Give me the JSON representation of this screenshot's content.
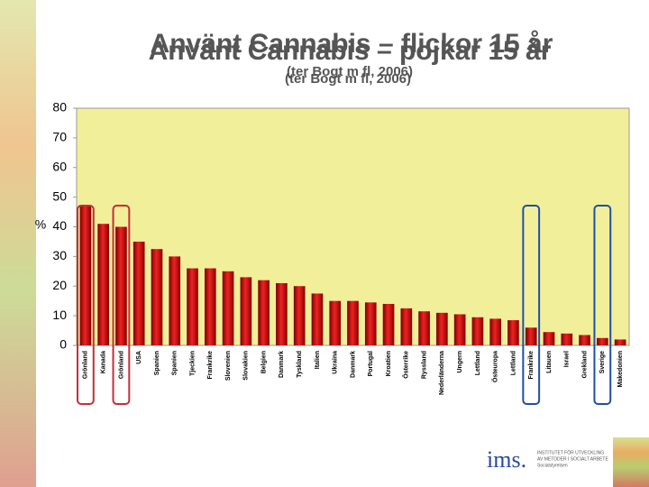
{
  "chart_data": {
    "type": "bar",
    "titles": [
      "Använt Cannabis – flickor 15 år",
      "Använt Cannabis – pojkar 15 år"
    ],
    "subtitles": [
      "(ter Bogt m fl, 2006)",
      "(ter Bogt m fl, 2006)"
    ],
    "y_label": "%",
    "categories": [
      "Grönland",
      "Kanada",
      "Grönland",
      "USA",
      "Spanien",
      "Spanien",
      "Tjeckien",
      "Frankrike",
      "Slovenien",
      "Slovakien",
      "Belgien",
      "Danmark",
      "Tyskland",
      "Italien",
      "Ukraina",
      "Danmark",
      "Portugal",
      "Kroatien",
      "Österrike",
      "Ryssland",
      "Nederländerna",
      "Ungern",
      "Lettland",
      "Östeuropa",
      "Lettland",
      "Frankrike",
      "Litauen",
      "Israel",
      "Grekland",
      "Sverige",
      "Makedonien"
    ],
    "values": [
      47,
      41,
      40,
      35,
      32.5,
      30,
      26,
      26,
      25,
      23,
      22,
      21,
      20,
      17.5,
      15,
      15,
      14.5,
      14,
      12.5,
      11.5,
      11,
      10.5,
      9.5,
      9,
      8.5,
      6,
      4.5,
      4,
      3.5,
      2.5,
      2
    ],
    "color": "#cc1111",
    "ylim": [
      0,
      80
    ],
    "yticks": [
      0,
      10,
      20,
      30,
      40,
      50,
      60,
      70,
      80
    ],
    "grid": false
  },
  "logo": {
    "name": "ims.",
    "text": [
      "INSTITUTET FÖR UTVECKLING",
      "AV METODER I SOCIALT ARBETE",
      "Socialstyrelsen"
    ]
  }
}
